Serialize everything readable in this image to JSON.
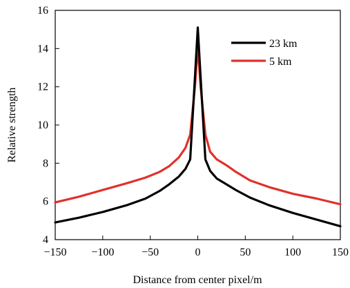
{
  "chart_data": {
    "type": "line",
    "title": "",
    "xlabel": "Distance from center pixel/m",
    "ylabel": "Relative strength",
    "xlim": [
      -150,
      150
    ],
    "ylim": [
      4,
      16
    ],
    "xticks": [
      "−150",
      "−100",
      "−50",
      "0",
      "50",
      "100",
      "150"
    ],
    "xtick_values": [
      -150,
      -100,
      -50,
      0,
      50,
      100,
      150
    ],
    "yticks": [
      "4",
      "6",
      "8",
      "10",
      "12",
      "14",
      "16"
    ],
    "ytick_values": [
      4,
      6,
      8,
      10,
      12,
      14,
      16
    ],
    "grid": false,
    "legend_position": "top-right",
    "series": [
      {
        "name": "23 km",
        "color": "#000000",
        "x": [
          -150,
          -125,
          -100,
          -75,
          -55,
          -40,
          -30,
          -20,
          -13,
          -8,
          -3,
          0,
          3,
          8,
          13,
          20,
          30,
          40,
          55,
          75,
          100,
          125,
          150
        ],
        "y": [
          4.9,
          5.15,
          5.45,
          5.8,
          6.15,
          6.55,
          6.9,
          7.3,
          7.7,
          8.2,
          12.5,
          15.1,
          12.5,
          8.2,
          7.6,
          7.2,
          6.9,
          6.6,
          6.2,
          5.8,
          5.4,
          5.05,
          4.7
        ]
      },
      {
        "name": "5 km",
        "color": "#e0312b",
        "x": [
          -150,
          -125,
          -100,
          -75,
          -55,
          -40,
          -30,
          -20,
          -13,
          -8,
          -3,
          0,
          3,
          8,
          13,
          20,
          30,
          40,
          55,
          75,
          100,
          125,
          150
        ],
        "y": [
          5.95,
          6.25,
          6.6,
          6.95,
          7.25,
          7.55,
          7.85,
          8.3,
          8.8,
          9.5,
          12.0,
          14.1,
          12.0,
          9.5,
          8.6,
          8.2,
          7.9,
          7.55,
          7.1,
          6.75,
          6.4,
          6.15,
          5.85
        ]
      }
    ]
  }
}
